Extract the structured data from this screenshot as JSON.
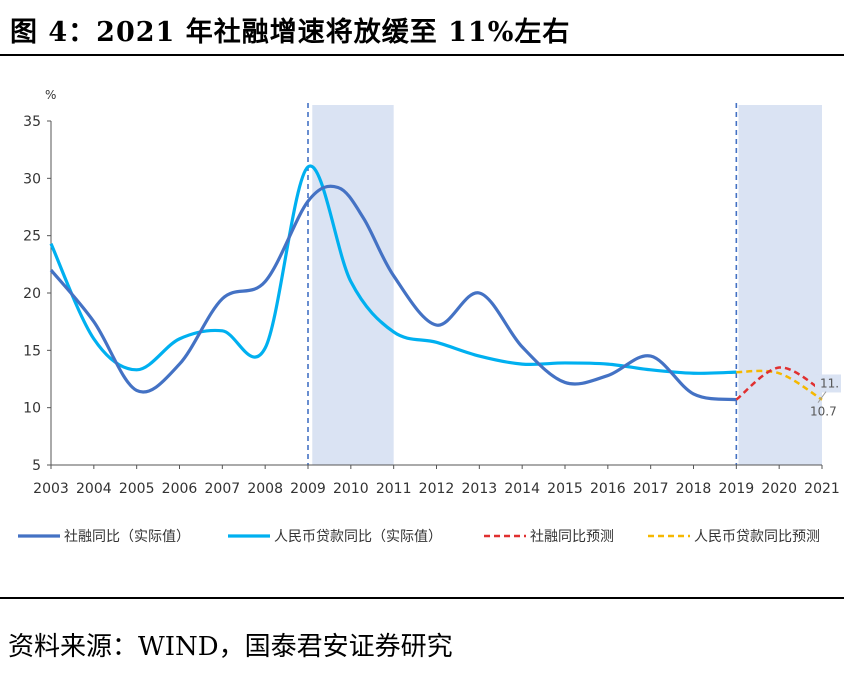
{
  "title": "图 4：2021 年社融增速将放缓至 11%左右",
  "source": "资料来源：WIND，国泰君安证券研究",
  "chart_data": {
    "type": "line",
    "y_unit": "%",
    "ylim": [
      5,
      35
    ],
    "yticks": [
      5,
      10,
      15,
      20,
      25,
      30,
      35
    ],
    "xlim": [
      2003,
      2021
    ],
    "xticks": [
      "2003",
      "2004",
      "2005",
      "2006",
      "2007",
      "2008",
      "2009",
      "2010",
      "2011",
      "2012",
      "2013",
      "2014",
      "2015",
      "2016",
      "2017",
      "2018",
      "2019",
      "2020",
      "2021"
    ],
    "grid": false,
    "legend_position": "bottom",
    "shaded_periods": [
      [
        2009.1,
        2011.0
      ],
      [
        2019.05,
        2021.0
      ]
    ],
    "vlines": [
      2009.0,
      2019.0
    ],
    "series": [
      {
        "name": "社融同比（实际值）",
        "color": "#4472C4",
        "style": "solid",
        "x": [
          2003,
          2004,
          2005,
          2006,
          2007,
          2008,
          2009,
          2009.7,
          2010.3,
          2011,
          2012,
          2013,
          2014,
          2015,
          2016,
          2017,
          2018,
          2019
        ],
        "y": [
          22.0,
          17.5,
          11.5,
          13.8,
          19.5,
          21.0,
          28.0,
          29.2,
          26.5,
          21.5,
          17.2,
          20.0,
          15.3,
          12.2,
          12.8,
          14.5,
          11.2,
          10.7
        ]
      },
      {
        "name": "人民币贷款同比（实际值）",
        "color": "#00B0F0",
        "style": "solid",
        "x": [
          2003,
          2004,
          2005,
          2006,
          2007,
          2008,
          2009,
          2010,
          2011,
          2012,
          2013,
          2014,
          2015,
          2016,
          2017,
          2018,
          2019
        ],
        "y": [
          24.3,
          16.0,
          13.3,
          16.0,
          16.7,
          15.2,
          31.0,
          21.0,
          16.6,
          15.7,
          14.5,
          13.8,
          13.9,
          13.8,
          13.3,
          13.0,
          13.1
        ]
      },
      {
        "name": "社融同比预测",
        "color": "#E03030",
        "style": "dashed",
        "x": [
          2019,
          2020,
          2021
        ],
        "y": [
          10.7,
          13.5,
          11.5
        ]
      },
      {
        "name": "人民币贷款同比预测",
        "color": "#F5B800",
        "style": "dashed",
        "x": [
          2019,
          2020,
          2021
        ],
        "y": [
          13.1,
          13.0,
          10.7
        ]
      }
    ],
    "annotations": [
      {
        "text": "11.",
        "x": 2021,
        "y": 11.5
      },
      {
        "text": "10.7",
        "x": 2021,
        "y": 10.7
      }
    ]
  }
}
